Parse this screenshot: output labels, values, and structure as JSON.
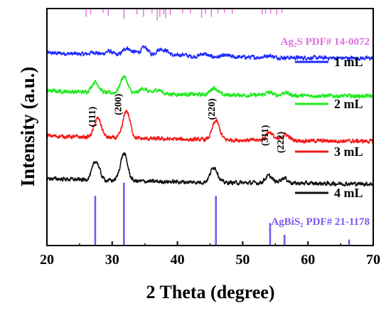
{
  "chart_data": {
    "type": "line",
    "xlabel": "2 Theta (degree)",
    "ylabel": "Intensity (a.u.)",
    "xlim": [
      20,
      70
    ],
    "xticks": [
      20,
      30,
      40,
      50,
      60,
      70
    ],
    "series": [
      {
        "name": "1 mL",
        "color": "#1f2bff",
        "baseline": 0.795,
        "peaks": [
          [
            27.2,
            0.01
          ],
          [
            29.5,
            0.015
          ],
          [
            32.2,
            0.03
          ],
          [
            33.5,
            0.012
          ],
          [
            35.0,
            0.035
          ],
          [
            37.2,
            0.025
          ],
          [
            38.3,
            0.02
          ],
          [
            40.8,
            0.008
          ],
          [
            44.0,
            0.012
          ],
          [
            47.5,
            0.006
          ],
          [
            54.0,
            0.008
          ]
        ]
      },
      {
        "name": "2 mL",
        "color": "#1eea1e",
        "baseline": 0.635,
        "peaks": [
          [
            27.4,
            0.045
          ],
          [
            31.8,
            0.07
          ],
          [
            34.8,
            0.022
          ],
          [
            37.0,
            0.018
          ],
          [
            45.6,
            0.03
          ],
          [
            54.0,
            0.012
          ],
          [
            56.5,
            0.012
          ]
        ]
      },
      {
        "name": "3 mL",
        "color": "#f21b1b",
        "baseline": 0.445,
        "peaks": [
          [
            27.8,
            0.08
          ],
          [
            32.2,
            0.115
          ],
          [
            45.9,
            0.08
          ],
          [
            54.1,
            0.035
          ],
          [
            56.6,
            0.025
          ]
        ]
      },
      {
        "name": "4 mL",
        "color": "#111111",
        "baseline": 0.265,
        "peaks": [
          [
            27.5,
            0.08
          ],
          [
            31.8,
            0.115
          ],
          [
            45.6,
            0.065
          ],
          [
            54.0,
            0.03
          ],
          [
            56.3,
            0.022
          ]
        ]
      }
    ],
    "peak_labels": [
      {
        "text": "(111)",
        "x": 27.4,
        "y": 0.5
      },
      {
        "text": "(200)",
        "x": 31.4,
        "y": 0.55
      },
      {
        "text": "(220)",
        "x": 45.7,
        "y": 0.53
      },
      {
        "text": "(311)",
        "x": 53.9,
        "y": 0.42
      },
      {
        "text": "(222)",
        "x": 56.3,
        "y": 0.39
      }
    ],
    "references": [
      {
        "label": "AgBiS₂ PDF# 21-1178",
        "color": "#7b57f2",
        "anchor": "bottom",
        "lines": [
          [
            27.4,
            0.21
          ],
          [
            31.8,
            0.265
          ],
          [
            45.9,
            0.21
          ],
          [
            54.2,
            0.095
          ],
          [
            56.4,
            0.045
          ],
          [
            66.3,
            0.025
          ]
        ]
      },
      {
        "label": "Ag₂S PDF# 14-0072",
        "color": "#e26ee2",
        "anchor": "top",
        "lines": [
          [
            26.0,
            0.035
          ],
          [
            26.7,
            0.025
          ],
          [
            28.6,
            0.018
          ],
          [
            29.4,
            0.03
          ],
          [
            31.8,
            0.045
          ],
          [
            33.8,
            0.025
          ],
          [
            34.8,
            0.035
          ],
          [
            36.1,
            0.02
          ],
          [
            36.9,
            0.05
          ],
          [
            37.3,
            0.035
          ],
          [
            37.9,
            0.025
          ],
          [
            38.2,
            0.04
          ],
          [
            38.9,
            0.028
          ],
          [
            40.8,
            0.02
          ],
          [
            42.0,
            0.02
          ],
          [
            43.7,
            0.04
          ],
          [
            44.3,
            0.022
          ],
          [
            45.2,
            0.035
          ],
          [
            46.2,
            0.02
          ],
          [
            47.2,
            0.018
          ],
          [
            48.4,
            0.022
          ],
          [
            53.0,
            0.025
          ],
          [
            53.5,
            0.022
          ],
          [
            54.3,
            0.02
          ],
          [
            55.2,
            0.028
          ],
          [
            56.0,
            0.018
          ]
        ]
      }
    ]
  }
}
